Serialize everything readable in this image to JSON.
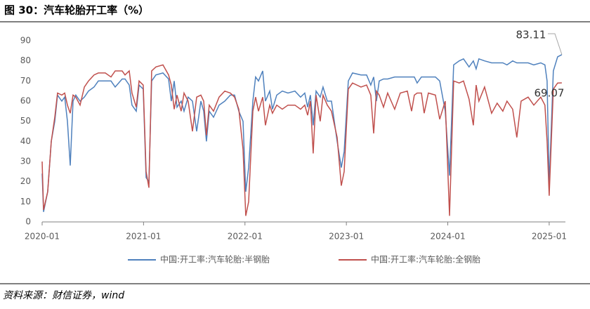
{
  "header": {
    "title": "图 30：汽车轮胎开工率（%）"
  },
  "chart_data": {
    "type": "line",
    "x": [
      2020.0,
      2020.014,
      2020.055,
      2020.09,
      2020.125,
      2020.152,
      2020.194,
      2020.222,
      2020.249,
      2020.277,
      2020.305,
      2020.332,
      2020.374,
      2020.416,
      2020.457,
      2020.512,
      2020.554,
      2020.623,
      2020.679,
      2020.72,
      2020.789,
      2020.817,
      2020.859,
      2020.886,
      2020.928,
      2020.956,
      2020.997,
      2021.025,
      2021.053,
      2021.08,
      2021.122,
      2021.191,
      2021.247,
      2021.274,
      2021.302,
      2021.33,
      2021.371,
      2021.399,
      2021.44,
      2021.482,
      2021.524,
      2021.565,
      2021.593,
      2021.62,
      2021.648,
      2021.69,
      2021.745,
      2021.801,
      2021.856,
      2021.897,
      2021.939,
      2021.981,
      2022.008,
      2022.036,
      2022.078,
      2022.105,
      2022.133,
      2022.175,
      2022.202,
      2022.244,
      2022.271,
      2022.313,
      2022.368,
      2022.424,
      2022.493,
      2022.548,
      2022.59,
      2022.618,
      2022.645,
      2022.673,
      2022.701,
      2022.742,
      2022.77,
      2022.812,
      2022.853,
      2022.909,
      2022.95,
      2022.978,
      2023.019,
      2023.061,
      2023.144,
      2023.199,
      2023.241,
      2023.269,
      2023.296,
      2023.324,
      2023.366,
      2023.407,
      2023.476,
      2023.532,
      2023.601,
      2023.643,
      2023.67,
      2023.698,
      2023.74,
      2023.767,
      2023.809,
      2023.878,
      2023.92,
      2023.975,
      2024.017,
      2024.058,
      2024.113,
      2024.155,
      2024.21,
      2024.252,
      2024.28,
      2024.307,
      2024.363,
      2024.432,
      2024.487,
      2024.543,
      2024.584,
      2024.64,
      2024.681,
      2024.723,
      2024.792,
      2024.848,
      2024.917,
      2024.958,
      2024.979,
      2025.0,
      2025.041,
      2025.083,
      2025.125
    ],
    "series": [
      {
        "name": "中国:开工率:汽车轮胎:半钢胎",
        "color": "#4f81bd",
        "values": [
          24,
          5,
          15,
          40,
          50,
          63,
          60,
          62,
          50,
          28,
          60,
          63,
          60,
          62,
          65,
          67,
          70,
          70,
          70,
          67,
          71,
          71,
          68,
          58,
          55,
          68,
          66,
          22,
          20,
          70,
          73,
          74,
          71,
          60,
          70,
          57,
          60,
          55,
          62,
          60,
          45,
          60,
          55,
          40,
          55,
          52,
          58,
          60,
          63,
          63,
          55,
          50,
          15,
          27,
          60,
          72,
          70,
          75,
          60,
          65,
          56,
          63,
          65,
          64,
          65,
          62,
          64,
          57,
          63,
          48,
          65,
          62,
          67,
          60,
          60,
          40,
          27,
          35,
          70,
          74,
          73,
          73,
          68,
          72,
          60,
          70,
          71,
          71,
          72,
          72,
          72,
          72,
          72,
          69,
          72,
          72,
          72,
          72,
          70,
          55,
          23,
          78,
          80,
          81,
          77,
          80,
          76,
          81,
          80,
          79,
          79,
          79,
          78,
          80,
          79,
          79,
          79,
          78,
          79,
          78,
          70,
          18,
          75,
          82,
          83.11
        ]
      },
      {
        "name": "中国:开工率:汽车轮胎:全钢胎",
        "color": "#c0504d",
        "values": [
          30,
          6,
          15,
          40,
          52,
          64,
          63,
          64,
          58,
          54,
          63,
          62,
          58,
          67,
          70,
          73,
          74,
          74,
          72,
          75,
          75,
          73,
          75,
          64,
          57,
          70,
          68,
          25,
          17,
          75,
          77,
          78,
          73,
          68,
          56,
          63,
          55,
          64,
          60,
          45,
          62,
          63,
          60,
          43,
          58,
          55,
          62,
          65,
          64,
          62,
          56,
          36,
          3,
          10,
          55,
          62,
          55,
          62,
          48,
          58,
          54,
          58,
          56,
          58,
          58,
          56,
          58,
          53,
          60,
          34,
          63,
          50,
          63,
          58,
          55,
          42,
          18,
          25,
          66,
          69,
          67,
          68,
          63,
          44,
          65,
          63,
          57,
          64,
          56,
          64,
          65,
          55,
          63,
          64,
          64,
          54,
          64,
          63,
          51,
          60,
          3,
          70,
          69,
          70,
          61,
          48,
          68,
          60,
          67,
          54,
          59,
          55,
          60,
          56,
          42,
          60,
          62,
          58,
          62,
          58,
          40,
          13,
          66,
          69,
          69.07
        ]
      }
    ],
    "xlim": [
      2020,
      2025.16
    ],
    "xticks": [
      {
        "value": 2020,
        "label": "2020-01"
      },
      {
        "value": 2021,
        "label": "2021-01"
      },
      {
        "value": 2022,
        "label": "2022-01"
      },
      {
        "value": 2023,
        "label": "2023-01"
      },
      {
        "value": 2024,
        "label": "2024-01"
      },
      {
        "value": 2025,
        "label": "2025-01"
      }
    ],
    "ylim": [
      0,
      90
    ],
    "yticks": [
      0,
      10,
      20,
      30,
      40,
      50,
      60,
      70,
      80,
      90
    ],
    "grid": false,
    "legend": "bottom"
  },
  "footer": {
    "source": "资料来源：财信证券，wind"
  }
}
